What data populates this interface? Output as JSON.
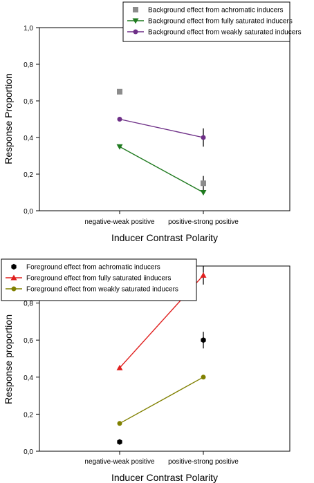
{
  "chart_data": [
    {
      "type": "line",
      "title": "",
      "xlabel": "Inducer Contrast Polarity",
      "ylabel": "Response Proportion",
      "categories": [
        "negative-weak positive",
        "positive-strong positive"
      ],
      "ylim": [
        0.0,
        1.0
      ],
      "yticks": [
        "0,0",
        "0,2",
        "0,4",
        "0,6",
        "0,8",
        "1,0"
      ],
      "grid": false,
      "legend_position": "top-right",
      "series": [
        {
          "name": "Background effect from achromatic inducers",
          "color": "#8c8c8c",
          "marker": "square",
          "connected": false,
          "values": [
            0.65,
            0.15
          ],
          "errors": [
            0.0,
            0.04
          ]
        },
        {
          "name": "Background effect from fully saturated inducers",
          "color": "#1f7a1f",
          "marker": "triangle-down",
          "connected": true,
          "values": [
            0.35,
            0.1
          ],
          "errors": [
            0.0,
            0.0
          ]
        },
        {
          "name": "Background effect from weakly saturated inducers",
          "color": "#6e2f87",
          "marker": "circle",
          "connected": true,
          "values": [
            0.5,
            0.4
          ],
          "errors": [
            0.0,
            0.05
          ]
        }
      ]
    },
    {
      "type": "line",
      "title": "",
      "xlabel": "Inducer Contrast Polarity",
      "ylabel": "Response proportion",
      "categories": [
        "negative-weak positive",
        "positive-strong positive"
      ],
      "ylim": [
        0.0,
        1.0
      ],
      "yticks": [
        "0,0",
        "0,2",
        "0,4",
        "0,6",
        "0,8"
      ],
      "grid": false,
      "legend_position": "top-left",
      "series": [
        {
          "name": "Foreground effect from achromatic inducers",
          "color": "#000000",
          "marker": "hexagon",
          "connected": false,
          "values": [
            0.05,
            0.6
          ],
          "errors": [
            0.0,
            0.045
          ]
        },
        {
          "name": "Foreground effect from fully saturated iinducers",
          "color": "#e0201f",
          "marker": "triangle-up",
          "connected": true,
          "values": [
            0.45,
            0.95
          ],
          "errors": [
            0.0,
            0.05
          ]
        },
        {
          "name": "Foreground effect from weakly saturated inducers",
          "color": "#808000",
          "marker": "circle",
          "connected": true,
          "values": [
            0.15,
            0.4
          ],
          "errors": [
            0.0,
            0.0
          ]
        }
      ]
    }
  ]
}
